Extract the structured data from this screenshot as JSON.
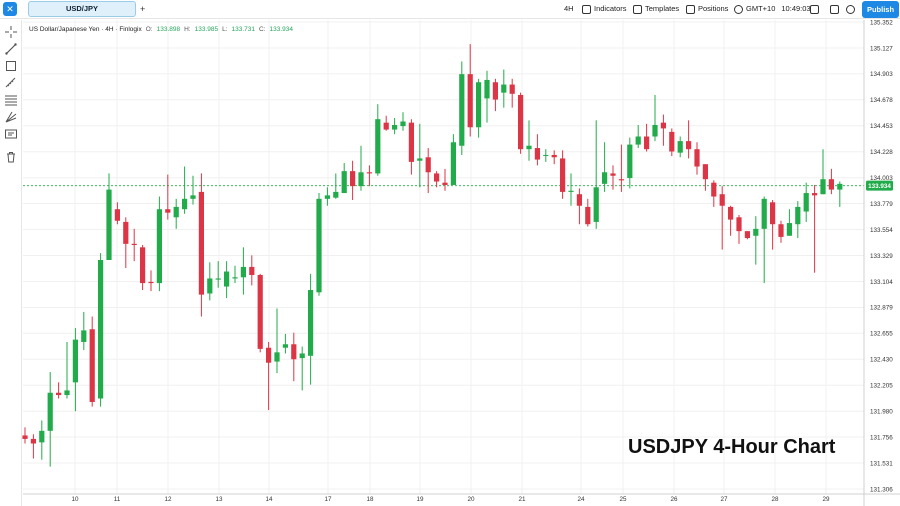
{
  "topbar": {
    "logo_text": "✕",
    "symbol": "USD/JPY",
    "add_tab": "+",
    "interval": "4H",
    "indicators": "Indicators",
    "templates": "Templates",
    "positions": "Positions",
    "timezone": "GMT+10",
    "clock": "10:49:03",
    "publish": "Publish"
  },
  "legend": {
    "instrument": "US Dollar/Japanese Yen · 4H · Finlogix",
    "open_label": "O:",
    "open": "133.898",
    "high_label": "H:",
    "high": "133.985",
    "low_label": "L:",
    "low": "133.731",
    "close_label": "C:",
    "close": "133.934"
  },
  "watermark": "USDJPY 4-Hour Chart",
  "colors": {
    "up": "#22ab4a",
    "down": "#dc3545",
    "accent": "#1e88e5",
    "current_price_line": "#22ab4a"
  },
  "left_tools": [
    "crosshair-icon",
    "trendline-icon",
    "rectangle-icon",
    "measure-icon",
    "fib-icon",
    "pitchfork-icon",
    "text-icon",
    "trash-icon"
  ],
  "chart_data": {
    "type": "candlestick",
    "y_ticks": [
      "135.352",
      "135.127",
      "134.903",
      "134.678",
      "134.453",
      "134.228",
      "134.003",
      "133.779",
      "133.554",
      "133.329",
      "133.104",
      "132.879",
      "132.655",
      "132.430",
      "132.205",
      "131.980",
      "131.756",
      "131.531",
      "131.306"
    ],
    "ylim": [
      131.306,
      135.352
    ],
    "x_ticks": [
      "10",
      "11",
      "12",
      "13",
      "14",
      "17",
      "18",
      "19",
      "20",
      "21",
      "24",
      "25",
      "26",
      "27",
      "28",
      "29"
    ],
    "current_price": 133.934,
    "current_price_label": "133.934",
    "candles": [
      [
        131.77,
        131.74,
        131.84,
        131.7
      ],
      [
        131.74,
        131.7,
        131.78,
        131.57
      ],
      [
        131.71,
        131.81,
        131.9,
        131.56
      ],
      [
        131.81,
        132.14,
        132.32,
        131.5
      ],
      [
        132.14,
        132.12,
        132.23,
        132.09
      ],
      [
        132.12,
        132.16,
        132.58,
        132.09
      ],
      [
        132.23,
        132.6,
        132.7,
        131.98
      ],
      [
        132.58,
        132.68,
        132.84,
        132.51
      ],
      [
        132.69,
        132.06,
        132.8,
        132.02
      ],
      [
        132.09,
        133.29,
        133.35,
        132.02
      ],
      [
        133.29,
        133.9,
        134.04,
        133.29
      ],
      [
        133.73,
        133.63,
        133.79,
        133.6
      ],
      [
        133.62,
        133.43,
        133.66,
        133.22
      ],
      [
        133.43,
        133.42,
        133.56,
        133.28
      ],
      [
        133.4,
        133.09,
        133.42,
        133.03
      ],
      [
        133.1,
        133.09,
        133.2,
        133.02
      ],
      [
        133.09,
        133.73,
        133.84,
        133.02
      ],
      [
        133.73,
        133.7,
        134.03,
        133.64
      ],
      [
        133.66,
        133.75,
        133.82,
        133.56
      ],
      [
        133.73,
        133.82,
        134.1,
        133.69
      ],
      [
        133.82,
        133.85,
        134.02,
        133.77
      ],
      [
        133.88,
        132.99,
        134.04,
        132.8
      ],
      [
        133.0,
        133.13,
        133.27,
        132.94
      ],
      [
        133.12,
        133.13,
        133.28,
        133.05
      ],
      [
        133.06,
        133.19,
        133.28,
        132.96
      ],
      [
        133.13,
        133.14,
        133.24,
        133.09
      ],
      [
        133.14,
        133.23,
        133.4,
        132.99
      ],
      [
        133.23,
        133.16,
        133.33,
        133.07
      ],
      [
        133.16,
        132.52,
        133.17,
        132.49
      ],
      [
        132.53,
        132.4,
        132.58,
        131.99
      ],
      [
        132.41,
        132.49,
        132.87,
        132.31
      ],
      [
        132.53,
        132.56,
        132.65,
        132.48
      ],
      [
        132.56,
        132.43,
        132.66,
        132.24
      ],
      [
        132.44,
        132.48,
        132.54,
        132.16
      ],
      [
        132.46,
        133.03,
        133.17,
        132.21
      ],
      [
        133.01,
        133.82,
        133.87,
        132.98
      ],
      [
        133.82,
        133.85,
        133.92,
        133.76
      ],
      [
        133.83,
        133.88,
        134.04,
        133.82
      ],
      [
        133.87,
        134.06,
        134.13,
        133.87
      ],
      [
        134.06,
        133.93,
        134.15,
        133.81
      ],
      [
        133.93,
        134.05,
        134.28,
        133.89
      ],
      [
        134.05,
        134.04,
        134.11,
        133.93
      ],
      [
        134.04,
        134.51,
        134.64,
        134.02
      ],
      [
        134.48,
        134.42,
        134.54,
        134.41
      ],
      [
        134.42,
        134.46,
        134.52,
        134.38
      ],
      [
        134.45,
        134.49,
        134.57,
        134.41
      ],
      [
        134.48,
        134.14,
        134.51,
        134.03
      ],
      [
        134.15,
        134.17,
        134.47,
        133.92
      ],
      [
        134.18,
        134.05,
        134.26,
        133.87
      ],
      [
        134.04,
        133.97,
        134.06,
        133.92
      ],
      [
        133.96,
        133.94,
        134.08,
        133.89
      ],
      [
        133.94,
        134.31,
        134.38,
        133.94
      ],
      [
        134.28,
        134.9,
        135.01,
        134.2
      ],
      [
        134.9,
        134.44,
        135.16,
        134.36
      ],
      [
        134.44,
        134.83,
        134.86,
        134.35
      ],
      [
        134.69,
        134.85,
        134.93,
        134.48
      ],
      [
        134.83,
        134.68,
        134.86,
        134.58
      ],
      [
        134.74,
        134.81,
        134.94,
        134.61
      ],
      [
        134.81,
        134.73,
        134.86,
        134.61
      ],
      [
        134.72,
        134.25,
        134.74,
        134.21
      ],
      [
        134.25,
        134.28,
        134.5,
        134.15
      ],
      [
        134.26,
        134.16,
        134.38,
        134.11
      ],
      [
        134.2,
        134.2,
        134.25,
        134.14
      ],
      [
        134.2,
        134.18,
        134.24,
        134.12
      ],
      [
        134.17,
        133.88,
        134.24,
        133.82
      ],
      [
        133.88,
        133.89,
        134.04,
        133.76
      ],
      [
        133.86,
        133.76,
        133.91,
        133.6
      ],
      [
        133.75,
        133.6,
        133.82,
        133.58
      ],
      [
        133.62,
        133.92,
        134.5,
        133.56
      ],
      [
        133.95,
        134.05,
        134.31,
        133.88
      ],
      [
        134.04,
        134.02,
        134.11,
        133.9
      ],
      [
        133.99,
        133.98,
        134.29,
        133.88
      ],
      [
        134.0,
        134.29,
        134.35,
        133.91
      ],
      [
        134.29,
        134.36,
        134.46,
        134.26
      ],
      [
        134.36,
        134.25,
        134.47,
        134.23
      ],
      [
        134.36,
        134.46,
        134.72,
        134.32
      ],
      [
        134.48,
        134.43,
        134.55,
        134.28
      ],
      [
        134.4,
        134.23,
        134.43,
        134.19
      ],
      [
        134.22,
        134.32,
        134.36,
        134.18
      ],
      [
        134.32,
        134.25,
        134.5,
        134.17
      ],
      [
        134.25,
        134.1,
        134.31,
        134.03
      ],
      [
        134.12,
        133.99,
        134.12,
        133.89
      ],
      [
        133.96,
        133.84,
        133.98,
        133.75
      ],
      [
        133.86,
        133.76,
        133.93,
        133.38
      ],
      [
        133.75,
        133.64,
        133.76,
        133.5
      ],
      [
        133.66,
        133.54,
        133.68,
        133.43
      ],
      [
        133.54,
        133.48,
        133.54,
        133.47
      ],
      [
        133.5,
        133.56,
        133.67,
        133.25
      ],
      [
        133.56,
        133.82,
        133.84,
        133.09
      ],
      [
        133.79,
        133.6,
        133.81,
        133.38
      ],
      [
        133.6,
        133.49,
        133.63,
        133.44
      ],
      [
        133.5,
        133.61,
        133.73,
        133.5
      ],
      [
        133.6,
        133.75,
        133.8,
        133.48
      ],
      [
        133.71,
        133.87,
        133.96,
        133.62
      ],
      [
        133.87,
        133.85,
        133.94,
        133.18
      ],
      [
        133.86,
        133.99,
        134.25,
        133.86
      ],
      [
        133.99,
        133.9,
        134.08,
        133.86
      ],
      [
        133.9,
        133.95,
        133.97,
        133.75
      ]
    ]
  }
}
